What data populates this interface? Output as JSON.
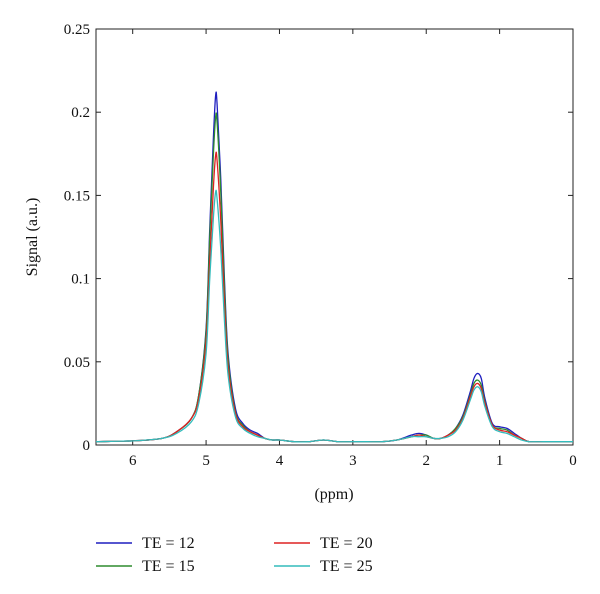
{
  "chart_data": {
    "type": "line",
    "xlabel": "(ppm)",
    "ylabel": "Signal (a.u.)",
    "xlim": [
      6.5,
      0
    ],
    "ylim": [
      0,
      0.25
    ],
    "x_reversed": true,
    "xticks": [
      6,
      5,
      4,
      3,
      2,
      1,
      0
    ],
    "yticks": [
      0,
      0.05,
      0.1,
      0.15,
      0.2,
      0.25
    ],
    "ytick_labels": [
      "0",
      "0.05",
      "0.1",
      "0.15",
      "0.2",
      "0.25"
    ],
    "grid": false,
    "legend_position": "bottom",
    "x": [
      6.5,
      6.0,
      5.6,
      5.4,
      5.2,
      5.1,
      5.0,
      4.95,
      4.9,
      4.87,
      4.85,
      4.8,
      4.75,
      4.7,
      4.6,
      4.5,
      4.4,
      4.3,
      4.2,
      4.1,
      4.0,
      3.8,
      3.6,
      3.4,
      3.2,
      3.0,
      2.8,
      2.6,
      2.4,
      2.2,
      2.1,
      2.0,
      1.9,
      1.8,
      1.7,
      1.6,
      1.5,
      1.4,
      1.35,
      1.3,
      1.25,
      1.2,
      1.1,
      1.0,
      0.9,
      0.8,
      0.7,
      0.6,
      0.4,
      0.2,
      0.0
    ],
    "series": [
      {
        "name": "TE = 12",
        "color": "#1f1fbf",
        "values": [
          0.002,
          0.0025,
          0.004,
          0.008,
          0.016,
          0.03,
          0.07,
          0.13,
          0.185,
          0.21,
          0.205,
          0.16,
          0.1,
          0.055,
          0.022,
          0.013,
          0.009,
          0.007,
          0.004,
          0.003,
          0.003,
          0.002,
          0.002,
          0.003,
          0.002,
          0.002,
          0.002,
          0.002,
          0.003,
          0.006,
          0.007,
          0.006,
          0.004,
          0.004,
          0.006,
          0.01,
          0.018,
          0.032,
          0.04,
          0.043,
          0.04,
          0.028,
          0.013,
          0.011,
          0.01,
          0.007,
          0.004,
          0.002,
          0.002,
          0.002,
          0.002
        ]
      },
      {
        "name": "TE = 15",
        "color": "#2e8b2e",
        "values": [
          0.002,
          0.0025,
          0.004,
          0.008,
          0.016,
          0.03,
          0.068,
          0.125,
          0.175,
          0.197,
          0.194,
          0.152,
          0.095,
          0.052,
          0.02,
          0.012,
          0.008,
          0.006,
          0.004,
          0.003,
          0.003,
          0.002,
          0.002,
          0.003,
          0.002,
          0.002,
          0.002,
          0.002,
          0.003,
          0.005,
          0.006,
          0.006,
          0.004,
          0.004,
          0.006,
          0.01,
          0.017,
          0.03,
          0.037,
          0.039,
          0.036,
          0.026,
          0.012,
          0.01,
          0.009,
          0.006,
          0.004,
          0.002,
          0.002,
          0.002,
          0.002
        ]
      },
      {
        "name": "TE = 20",
        "color": "#dd2222",
        "values": [
          0.002,
          0.0025,
          0.004,
          0.008,
          0.016,
          0.028,
          0.062,
          0.11,
          0.155,
          0.174,
          0.171,
          0.135,
          0.085,
          0.047,
          0.019,
          0.011,
          0.008,
          0.006,
          0.004,
          0.003,
          0.003,
          0.002,
          0.002,
          0.003,
          0.002,
          0.002,
          0.002,
          0.002,
          0.003,
          0.005,
          0.006,
          0.005,
          0.004,
          0.004,
          0.006,
          0.009,
          0.016,
          0.029,
          0.035,
          0.037,
          0.034,
          0.025,
          0.012,
          0.009,
          0.008,
          0.006,
          0.004,
          0.002,
          0.002,
          0.002,
          0.002
        ]
      },
      {
        "name": "TE = 25",
        "color": "#33bcbc",
        "values": [
          0.002,
          0.0025,
          0.004,
          0.007,
          0.014,
          0.025,
          0.055,
          0.1,
          0.137,
          0.152,
          0.148,
          0.118,
          0.075,
          0.042,
          0.017,
          0.01,
          0.007,
          0.005,
          0.004,
          0.003,
          0.003,
          0.002,
          0.002,
          0.003,
          0.002,
          0.002,
          0.002,
          0.002,
          0.003,
          0.005,
          0.005,
          0.005,
          0.004,
          0.004,
          0.005,
          0.008,
          0.015,
          0.027,
          0.033,
          0.035,
          0.032,
          0.023,
          0.011,
          0.008,
          0.007,
          0.005,
          0.003,
          0.002,
          0.002,
          0.002,
          0.002
        ]
      }
    ]
  }
}
